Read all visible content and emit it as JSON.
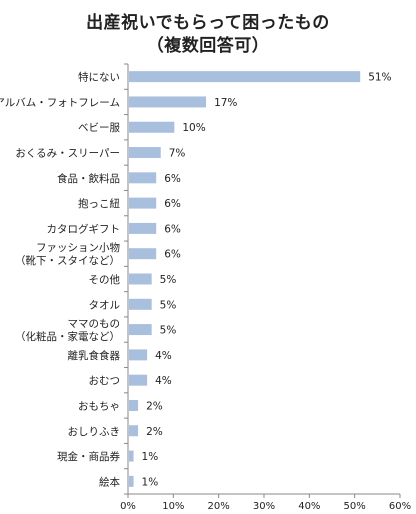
{
  "chart_data": {
    "type": "bar",
    "orientation": "horizontal",
    "title": "出産祝いでもらって困ったもの",
    "subtitle": "（複数回答可）",
    "categories": [
      "特にない",
      "アルバム・フォトフレーム",
      "ベビー服",
      "おくるみ・スリーパー",
      "食品・飲料品",
      "抱っこ紐",
      "カタログギフト",
      "ファッション小物\n（靴下・スタイなど）",
      "その他",
      "タオル",
      "ママのもの\n（化粧品・家電など）",
      "離乳食食器",
      "おむつ",
      "おもちゃ",
      "おしりふき",
      "現金・商品券",
      "絵本"
    ],
    "values": [
      51,
      17,
      10,
      7,
      6,
      6,
      6,
      6,
      5,
      5,
      5,
      4,
      4,
      2,
      2,
      1,
      1
    ],
    "value_labels": [
      "51%",
      "17%",
      "10%",
      "7%",
      "6%",
      "6%",
      "6%",
      "6%",
      "5%",
      "5%",
      "5%",
      "4%",
      "4%",
      "2%",
      "2%",
      "1%",
      "1%"
    ],
    "xlim": [
      0,
      60
    ],
    "x_ticks": [
      "0%",
      "10%",
      "20%",
      "30%",
      "40%",
      "50%",
      "60%"
    ],
    "xlabel": "",
    "ylabel": "",
    "grid": false,
    "bar_color": "#a8bfdd",
    "axis_color": "#888888"
  }
}
